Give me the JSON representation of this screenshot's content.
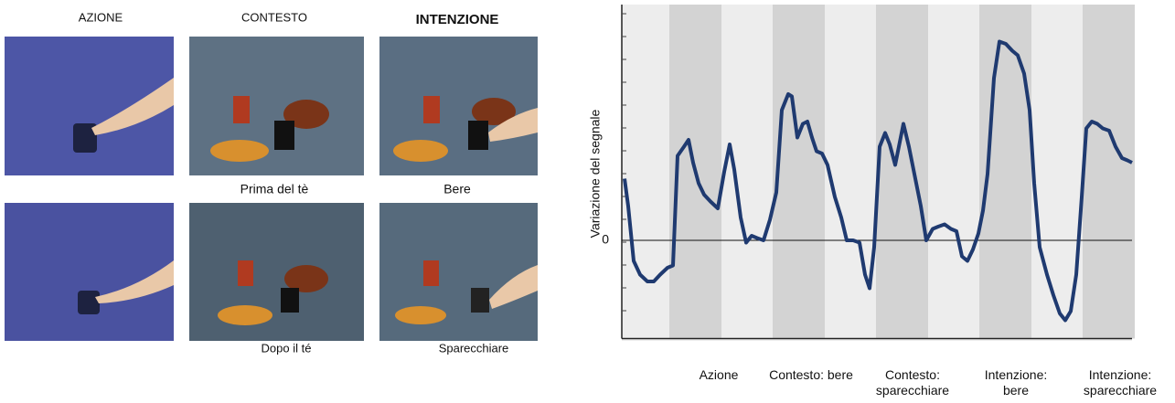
{
  "panels": {
    "headers": [
      "AZIONE",
      "CONTESTO",
      "INTENZIONE"
    ],
    "captions_top": [
      "Prima del tè",
      "Bere"
    ],
    "captions_bottom": [
      "Dopo il té",
      "Sparecchiare"
    ]
  },
  "chart_data": {
    "type": "line",
    "y_label": "Variazione del segnale",
    "conditions": [
      "Azione",
      "Contesto: bere",
      "Contesto: sparecchiare",
      "Intenzione: bere",
      "Intenzione: sparecchiare"
    ],
    "color": "#1f3a70",
    "xlim": [
      0,
      558
    ],
    "ylim": [
      -4.3,
      10.1
    ],
    "yticks": [
      0
    ],
    "x": [
      3,
      7,
      13,
      20,
      28,
      35,
      42,
      50,
      56,
      61,
      68,
      73,
      78,
      84,
      90,
      97,
      105,
      112,
      118,
      123,
      130,
      136,
      142,
      148,
      155,
      162,
      169,
      175,
      182,
      186,
      192,
      198,
      203,
      208,
      213,
      219,
      225,
      233,
      240,
      246,
      253,
      260,
      266,
      271,
      276,
      282,
      288,
      293,
      299,
      305,
      308,
      314,
      320,
      327,
      333,
      340,
      346,
      353,
      360,
      366,
      372,
      378,
      384,
      390,
      395,
      400,
      407,
      413,
      420,
      427,
      433,
      440,
      446,
      451,
      457,
      465,
      472,
      479,
      485,
      491,
      497,
      503,
      508,
      514,
      520,
      526,
      533,
      540,
      547,
      553,
      558
    ],
    "values": [
      2.7,
      1.5,
      -0.9,
      -1.5,
      -1.8,
      -1.8,
      -1.5,
      -1.2,
      -1.1,
      3.7,
      4.1,
      4.4,
      3.4,
      2.5,
      2.0,
      1.7,
      1.4,
      3.0,
      4.2,
      3.1,
      1.0,
      -0.1,
      0.2,
      0.1,
      0.0,
      0.9,
      2.1,
      5.7,
      6.4,
      6.3,
      4.5,
      5.1,
      5.2,
      4.5,
      3.9,
      3.8,
      3.3,
      1.9,
      1.0,
      0,
      0,
      -0.1,
      -1.5,
      -2.1,
      -0.3,
      4.1,
      4.7,
      4.2,
      3.3,
      4.5,
      5.1,
      4.1,
      2.9,
      1.5,
      0.0,
      0.5,
      0.6,
      0.7,
      0.5,
      0.4,
      -0.7,
      -0.9,
      -0.4,
      0.3,
      1.3,
      2.9,
      7.1,
      8.7,
      8.6,
      8.3,
      8.1,
      7.3,
      5.7,
      2.5,
      -0.3,
      -1.5,
      -2.4,
      -3.2,
      -3.5,
      -3.1,
      -1.5,
      1.9,
      4.9,
      5.2,
      5.1,
      4.9,
      4.8,
      4.1,
      3.6,
      3.5,
      3.4
    ]
  }
}
